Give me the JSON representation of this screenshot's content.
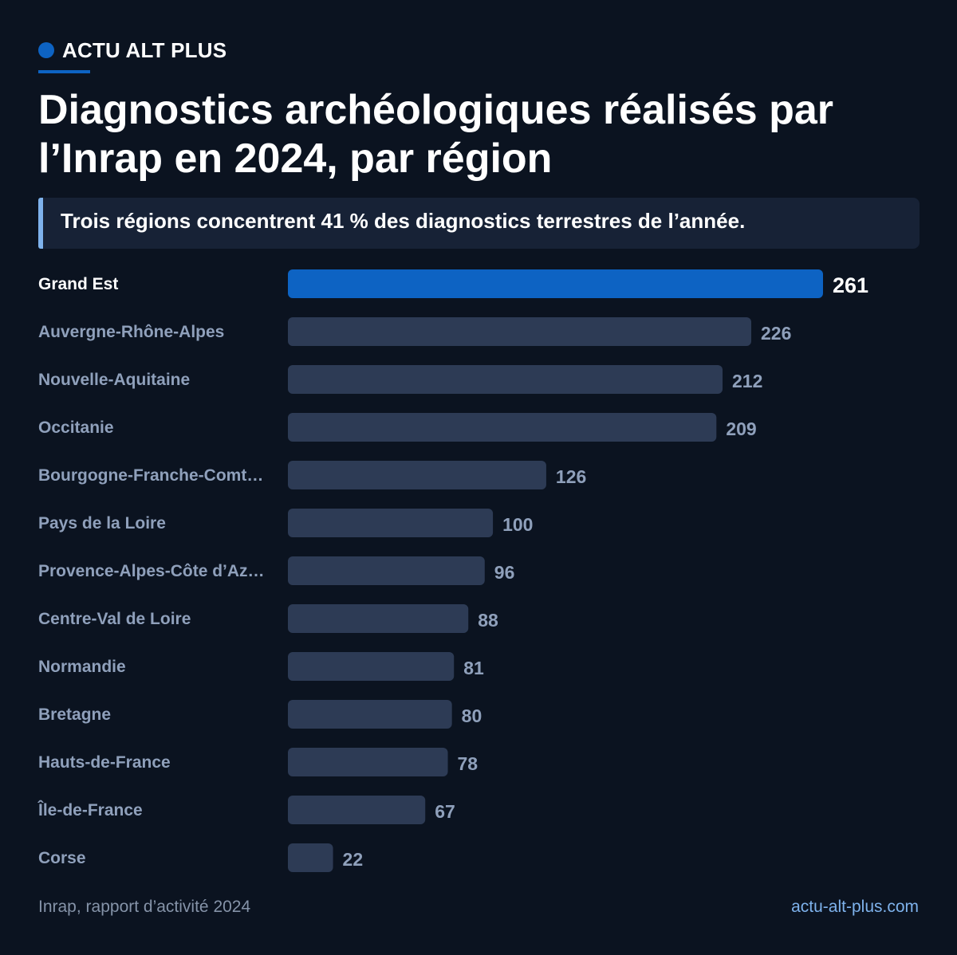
{
  "brand": {
    "name": "ACTU ALT PLUS",
    "color": "#0d63c3"
  },
  "title": "Diagnostics archéologiques réalisés par l’Inrap en 2024, par région",
  "callout": "Trois régions concentrent 41 % des diagnostics terrestres de l’année.",
  "footer": {
    "source": "Inrap, rapport d’activité 2024",
    "site": "actu-alt-plus.com"
  },
  "colors": {
    "background": "#0b1320",
    "highlight_bar": "#0d63c3",
    "bar": "#2d3b55",
    "muted_text": "#8fa0bb",
    "link": "#7eb2ec"
  },
  "chart_data": {
    "type": "bar",
    "orientation": "horizontal",
    "categories": [
      "Grand Est",
      "Auvergne-Rhône-Alpes",
      "Nouvelle-Aquitaine",
      "Occitanie",
      "Bourgogne-Franche-Comt…",
      "Pays de la Loire",
      "Provence-Alpes-Côte d’Az…",
      "Centre-Val de Loire",
      "Normandie",
      "Bretagne",
      "Hauts-de-France",
      "Île-de-France",
      "Corse"
    ],
    "values": [
      261,
      226,
      212,
      209,
      126,
      100,
      96,
      88,
      81,
      80,
      78,
      67,
      22
    ],
    "highlighted": [
      "Grand Est"
    ],
    "data_labels": true,
    "grid": false,
    "legend": "none"
  }
}
